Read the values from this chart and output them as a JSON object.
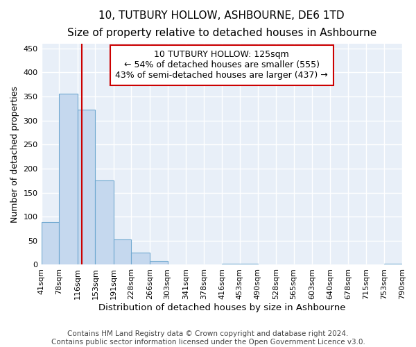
{
  "title": "10, TUTBURY HOLLOW, ASHBOURNE, DE6 1TD",
  "subtitle": "Size of property relative to detached houses in Ashbourne",
  "xlabel": "Distribution of detached houses by size in Ashbourne",
  "ylabel": "Number of detached properties",
  "bin_edges": [
    41,
    78,
    116,
    153,
    191,
    228,
    266,
    303,
    341,
    378,
    416,
    453,
    490,
    528,
    565,
    603,
    640,
    678,
    715,
    753,
    790
  ],
  "bar_heights": [
    88,
    355,
    323,
    175,
    52,
    25,
    8,
    0,
    0,
    0,
    2,
    2,
    0,
    0,
    0,
    0,
    0,
    0,
    0,
    2
  ],
  "bar_color": "#c5d8ee",
  "bar_edge_color": "#6fa8d0",
  "property_size": 125,
  "vline_color": "#cc0000",
  "annotation_line1": "10 TUTBURY HOLLOW: 125sqm",
  "annotation_line2": "← 54% of detached houses are smaller (555)",
  "annotation_line3": "43% of semi-detached houses are larger (437) →",
  "annotation_box_color": "#ffffff",
  "annotation_box_edge_color": "#cc0000",
  "ylim": [
    0,
    460
  ],
  "yticks": [
    0,
    50,
    100,
    150,
    200,
    250,
    300,
    350,
    400,
    450
  ],
  "background_color": "#e8eff8",
  "grid_color": "#ffffff",
  "footer_text": "Contains HM Land Registry data © Crown copyright and database right 2024.\nContains public sector information licensed under the Open Government Licence v3.0.",
  "title_fontsize": 11,
  "subtitle_fontsize": 10,
  "xlabel_fontsize": 9.5,
  "ylabel_fontsize": 9,
  "tick_fontsize": 8,
  "annotation_fontsize": 9,
  "footer_fontsize": 7.5
}
